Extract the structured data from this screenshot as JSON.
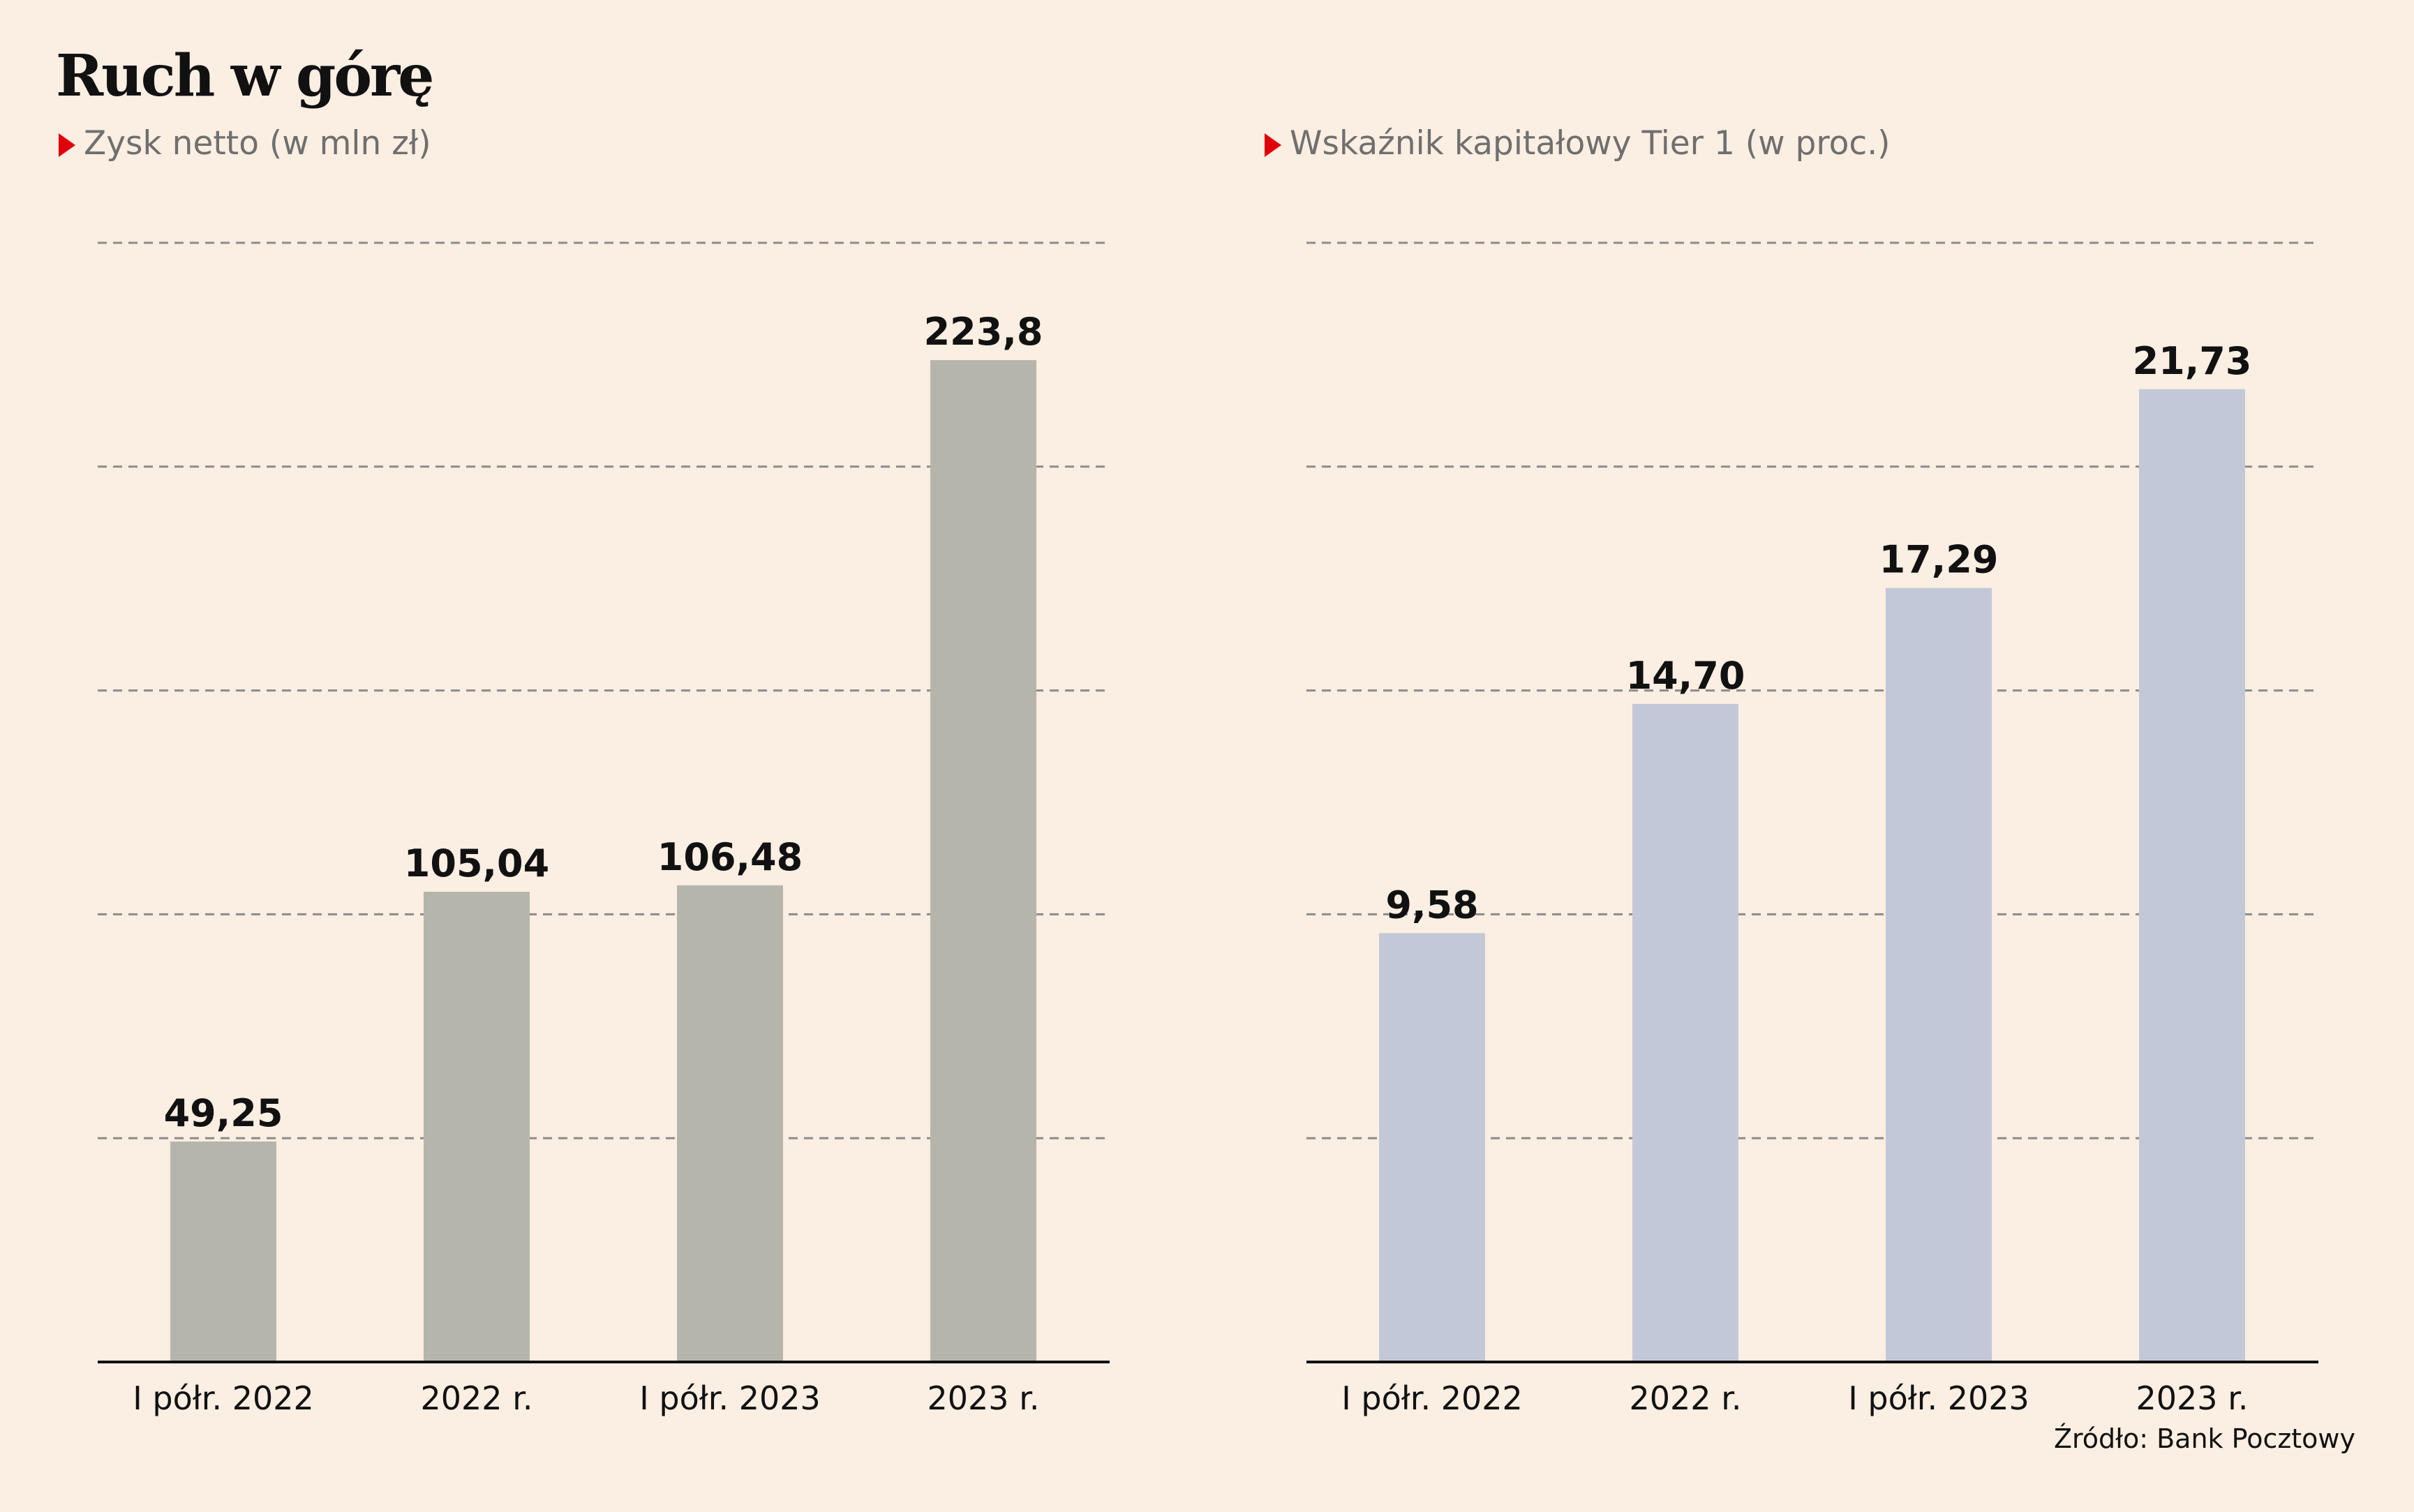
{
  "header": {
    "title": "Ruch w górę"
  },
  "source": "Źródło: Bank Pocztowy",
  "colors": {
    "background": "#fbeee2",
    "left_bars": "#b5b5ac",
    "right_bars": "#c3c8d8",
    "marker": "#e0000b"
  },
  "chart_data": [
    {
      "type": "bar",
      "title": "Zysk netto (w mln zł)",
      "categories": [
        "I półr. 2022",
        "2022 r.",
        "I półr. 2023",
        "2023 r."
      ],
      "values": [
        49.25,
        105.04,
        106.48,
        223.8
      ],
      "value_labels": [
        "49,25",
        "105,04",
        "106,48",
        "223,8"
      ],
      "ylim": [
        0,
        250
      ],
      "grid": true,
      "legend": "none"
    },
    {
      "type": "bar",
      "title": "Wskaźnik kapitałowy Tier 1 (w proc.)",
      "categories": [
        "I półr. 2022",
        "2022 r.",
        "I półr. 2023",
        "2023 r."
      ],
      "values": [
        9.58,
        14.7,
        17.29,
        21.73
      ],
      "value_labels": [
        "9,58",
        "14,70",
        "17,29",
        "21,73"
      ],
      "ylim": [
        0,
        25
      ],
      "grid": true,
      "legend": "none"
    }
  ]
}
